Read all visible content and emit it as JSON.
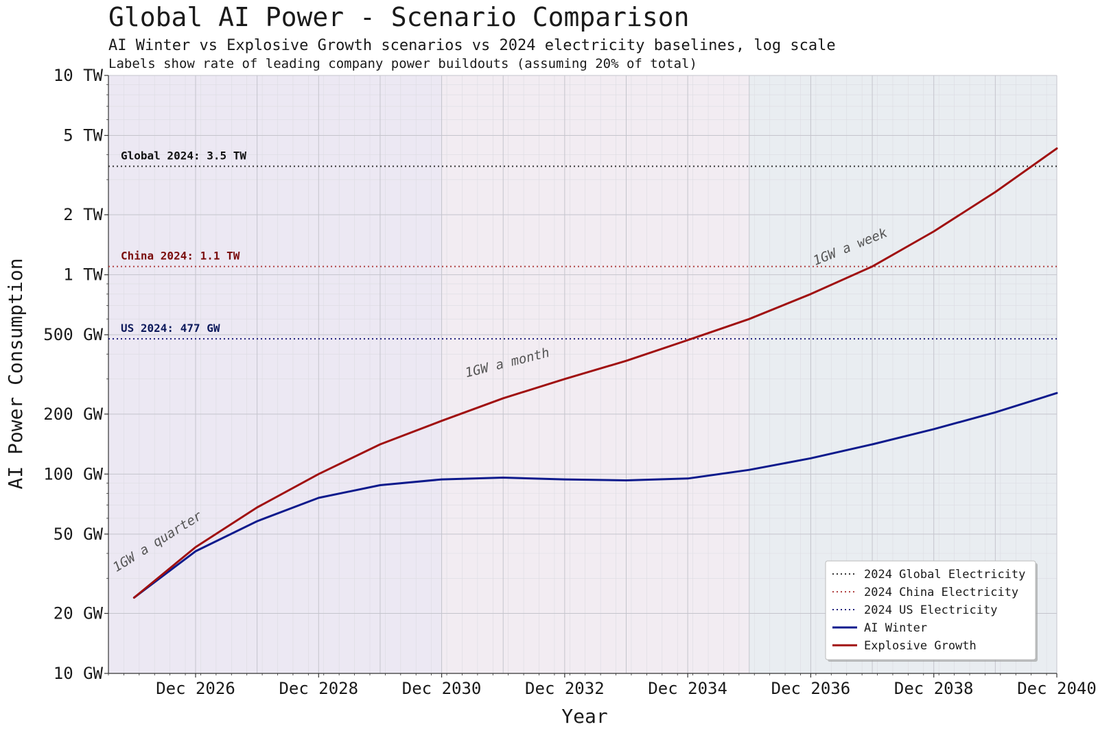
{
  "chart_data": {
    "type": "line",
    "title": "Global AI Power - Scenario Comparison",
    "subtitle": "AI Winter vs Explosive Growth scenarios vs 2024 electricity baselines, log scale",
    "subtitle2": "Labels show rate of leading company power buildouts (assuming 20% of total)",
    "xlabel": "Year",
    "ylabel": "AI Power Consumption",
    "y_scale": "log",
    "ylim_gw": [
      10,
      10000
    ],
    "xlim": [
      "2025-07",
      "2040-12"
    ],
    "grid": true,
    "legend_position": "bottom-right",
    "x_ticks": [
      {
        "date": "2026-12",
        "label": "Dec 2026"
      },
      {
        "date": "2028-12",
        "label": "Dec 2028"
      },
      {
        "date": "2030-12",
        "label": "Dec 2030"
      },
      {
        "date": "2032-12",
        "label": "Dec 2032"
      },
      {
        "date": "2034-12",
        "label": "Dec 2034"
      },
      {
        "date": "2036-12",
        "label": "Dec 2036"
      },
      {
        "date": "2038-12",
        "label": "Dec 2038"
      },
      {
        "date": "2040-12",
        "label": "Dec 2040"
      }
    ],
    "y_ticks": [
      {
        "value_gw": 10,
        "label": "10 GW"
      },
      {
        "value_gw": 20,
        "label": "20 GW"
      },
      {
        "value_gw": 50,
        "label": "50 GW"
      },
      {
        "value_gw": 100,
        "label": "100 GW"
      },
      {
        "value_gw": 200,
        "label": "200 GW"
      },
      {
        "value_gw": 500,
        "label": "500 GW"
      },
      {
        "value_gw": 1000,
        "label": "1 TW"
      },
      {
        "value_gw": 2000,
        "label": "2 TW"
      },
      {
        "value_gw": 5000,
        "label": "5 TW"
      },
      {
        "value_gw": 10000,
        "label": "10 TW"
      }
    ],
    "series": [
      {
        "name": "AI Winter",
        "color": "#0d1a8c",
        "points": [
          {
            "date": "2025-12",
            "gw": 24
          },
          {
            "date": "2026-12",
            "gw": 41
          },
          {
            "date": "2027-12",
            "gw": 58
          },
          {
            "date": "2028-12",
            "gw": 76
          },
          {
            "date": "2029-12",
            "gw": 88
          },
          {
            "date": "2030-12",
            "gw": 94
          },
          {
            "date": "2031-12",
            "gw": 96
          },
          {
            "date": "2032-12",
            "gw": 94
          },
          {
            "date": "2033-12",
            "gw": 93
          },
          {
            "date": "2034-12",
            "gw": 95
          },
          {
            "date": "2035-12",
            "gw": 105
          },
          {
            "date": "2036-12",
            "gw": 120
          },
          {
            "date": "2037-12",
            "gw": 141
          },
          {
            "date": "2038-12",
            "gw": 168
          },
          {
            "date": "2039-12",
            "gw": 204
          },
          {
            "date": "2040-12",
            "gw": 255
          }
        ]
      },
      {
        "name": "Explosive Growth",
        "color": "#a01010",
        "points": [
          {
            "date": "2025-12",
            "gw": 24
          },
          {
            "date": "2026-12",
            "gw": 43
          },
          {
            "date": "2027-12",
            "gw": 68
          },
          {
            "date": "2028-12",
            "gw": 100
          },
          {
            "date": "2029-12",
            "gw": 141
          },
          {
            "date": "2030-12",
            "gw": 185
          },
          {
            "date": "2031-12",
            "gw": 240
          },
          {
            "date": "2032-12",
            "gw": 300
          },
          {
            "date": "2033-12",
            "gw": 370
          },
          {
            "date": "2034-12",
            "gw": 470
          },
          {
            "date": "2035-12",
            "gw": 600
          },
          {
            "date": "2036-12",
            "gw": 800
          },
          {
            "date": "2037-12",
            "gw": 1100
          },
          {
            "date": "2038-12",
            "gw": 1650
          },
          {
            "date": "2039-12",
            "gw": 2600
          },
          {
            "date": "2040-12",
            "gw": 4300
          }
        ]
      }
    ],
    "reference_lines": [
      {
        "name": "2024 Global Electricity",
        "label": "Global 2024: 3.5 TW",
        "gw": 3500,
        "color": "#333333",
        "label_color": "#111111"
      },
      {
        "name": "2024 China Electricity",
        "label": "China 2024: 1.1 TW",
        "gw": 1100,
        "color": "#b04040",
        "label_color": "#7a0c0c"
      },
      {
        "name": "2024 US Electricity",
        "label": "US 2024: 477 GW",
        "gw": 477,
        "color": "#1a1a7a",
        "label_color": "#0d1a5c"
      }
    ],
    "rate_annotations": [
      {
        "text": "1GW a quarter",
        "date": "2026-05",
        "gw": 44,
        "angle": -32
      },
      {
        "text": "1GW a month",
        "date": "2032-01",
        "gw": 345,
        "angle": -14
      },
      {
        "text": "1GW a week",
        "date": "2037-08",
        "gw": 1320,
        "angle": -22
      }
    ],
    "background_bands": [
      {
        "from": "2025-07",
        "to": "2030-12",
        "color": "#ece8f3"
      },
      {
        "from": "2030-12",
        "to": "2035-12",
        "color": "#f2ecf2"
      },
      {
        "from": "2035-12",
        "to": "2040-12",
        "color": "#e9edf1"
      }
    ]
  }
}
